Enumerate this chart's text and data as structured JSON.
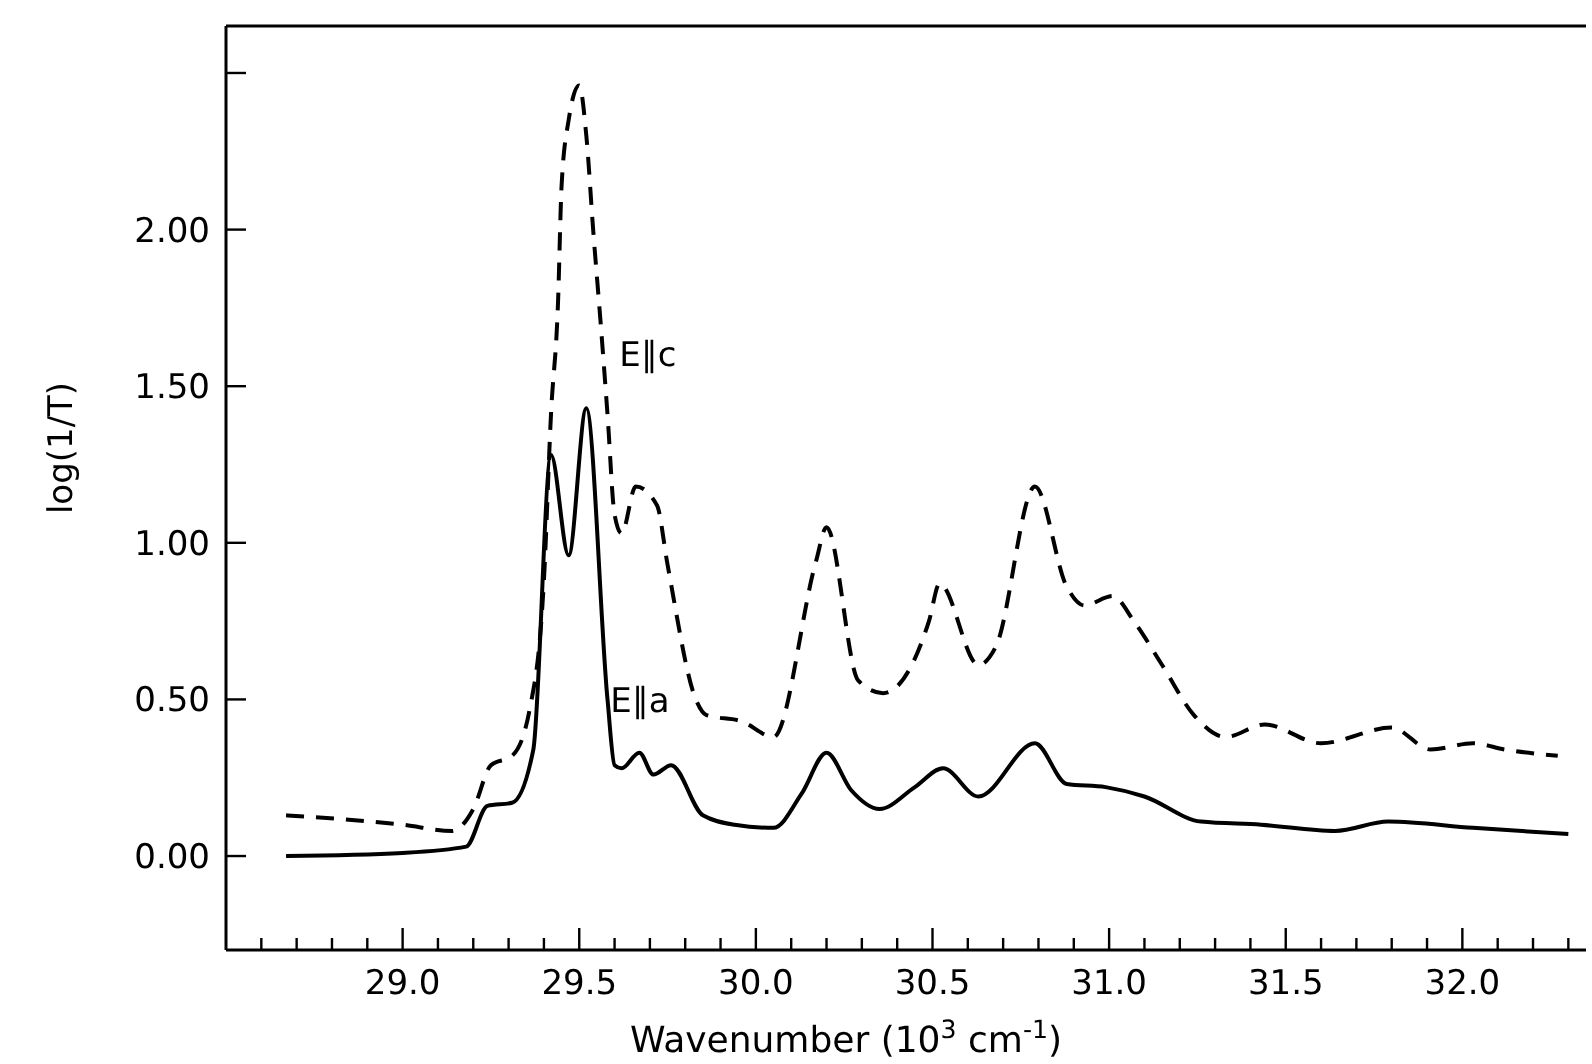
{
  "chart_data": {
    "type": "line",
    "xlabel": "Wavenumber (10$^{3}$ cm$^{-1}$)",
    "ylabel": "log(1/T)",
    "xlim": [
      28.5,
      32.35
    ],
    "ylim": [
      -0.3,
      2.65
    ],
    "xticks": [
      {
        "value": 28.6,
        "label": null
      },
      {
        "value": 28.7,
        "label": null
      },
      {
        "value": 28.8,
        "label": null
      },
      {
        "value": 28.9,
        "label": null
      },
      {
        "value": 29,
        "label": "29.0"
      },
      {
        "value": 29.1,
        "label": null
      },
      {
        "value": 29.2,
        "label": null
      },
      {
        "value": 29.3,
        "label": null
      },
      {
        "value": 29.4,
        "label": null
      },
      {
        "value": 29.5,
        "label": "29.5"
      },
      {
        "value": 29.6,
        "label": null
      },
      {
        "value": 29.7,
        "label": null
      },
      {
        "value": 29.8,
        "label": null
      },
      {
        "value": 29.9,
        "label": null
      },
      {
        "value": 30,
        "label": "30.0"
      },
      {
        "value": 30.1,
        "label": null
      },
      {
        "value": 30.2,
        "label": null
      },
      {
        "value": 30.3,
        "label": null
      },
      {
        "value": 30.4,
        "label": null
      },
      {
        "value": 30.5,
        "label": "30.5"
      },
      {
        "value": 30.6,
        "label": null
      },
      {
        "value": 30.7,
        "label": null
      },
      {
        "value": 30.8,
        "label": null
      },
      {
        "value": 30.9,
        "label": null
      },
      {
        "value": 31,
        "label": "31.0"
      },
      {
        "value": 31.1,
        "label": null
      },
      {
        "value": 31.2,
        "label": null
      },
      {
        "value": 31.3,
        "label": null
      },
      {
        "value": 31.4,
        "label": null
      },
      {
        "value": 31.5,
        "label": "31.5"
      },
      {
        "value": 31.6,
        "label": null
      },
      {
        "value": 31.7,
        "label": null
      },
      {
        "value": 31.8,
        "label": null
      },
      {
        "value": 31.9,
        "label": null
      },
      {
        "value": 32,
        "label": "32.0"
      },
      {
        "value": 32.1,
        "label": null
      },
      {
        "value": 32.2,
        "label": null
      },
      {
        "value": 32.3,
        "label": null
      }
    ],
    "yticks": [
      {
        "value": 0,
        "label": "0.00"
      },
      {
        "value": 0.5,
        "label": "0.50"
      },
      {
        "value": 1,
        "label": "1.00"
      },
      {
        "value": 1.5,
        "label": "1.50"
      },
      {
        "value": 2,
        "label": "2.00"
      },
      {
        "value": 2.5,
        "label": null
      }
    ],
    "grid": false,
    "marker": "none",
    "series": [
      {
        "name": "E∥c",
        "color": "#000000",
        "line_style": "dashed",
        "x": [
          28.67,
          29.0,
          29.14,
          29.2,
          29.25,
          29.31,
          29.36,
          29.4,
          29.42,
          29.44,
          29.45,
          29.47,
          29.5,
          29.52,
          29.54,
          29.56,
          29.58,
          29.6,
          29.62,
          29.66,
          29.72,
          29.75,
          29.83,
          29.86,
          29.96,
          30.05,
          30.17,
          30.2,
          30.29,
          30.36,
          30.49,
          30.52,
          30.63,
          30.68,
          30.79,
          30.88,
          30.93,
          31.01,
          31.07,
          31.15,
          31.24,
          31.33,
          31.44,
          31.6,
          31.8,
          31.91,
          32.03,
          32.12,
          32.27
        ],
        "values": [
          0.13,
          0.1,
          0.08,
          0.15,
          0.29,
          0.32,
          0.47,
          0.88,
          1.41,
          1.77,
          2.14,
          2.35,
          2.46,
          2.3,
          1.99,
          1.71,
          1.41,
          1.09,
          1.03,
          1.18,
          1.12,
          0.93,
          0.5,
          0.45,
          0.43,
          0.38,
          0.94,
          1.05,
          0.56,
          0.52,
          0.75,
          0.87,
          0.61,
          0.67,
          1.18,
          0.86,
          0.8,
          0.83,
          0.75,
          0.61,
          0.45,
          0.38,
          0.42,
          0.36,
          0.41,
          0.34,
          0.36,
          0.34,
          0.32
        ]
      },
      {
        "name": "E∥a",
        "color": "#000000",
        "line_style": "solid",
        "x": [
          28.67,
          29.0,
          29.18,
          29.24,
          29.31,
          29.37,
          29.42,
          29.47,
          29.52,
          29.58,
          29.6,
          29.62,
          29.67,
          29.71,
          29.76,
          29.85,
          29.94,
          30.05,
          30.13,
          30.2,
          30.27,
          30.35,
          30.45,
          30.53,
          30.63,
          30.79,
          30.88,
          30.99,
          31.1,
          31.26,
          31.43,
          31.64,
          31.79,
          32.03,
          32.3
        ],
        "values": [
          0.0,
          0.01,
          0.03,
          0.16,
          0.17,
          0.34,
          1.28,
          0.96,
          1.43,
          0.5,
          0.29,
          0.28,
          0.33,
          0.26,
          0.29,
          0.13,
          0.1,
          0.09,
          0.2,
          0.33,
          0.21,
          0.15,
          0.22,
          0.28,
          0.19,
          0.36,
          0.23,
          0.22,
          0.19,
          0.11,
          0.1,
          0.08,
          0.11,
          0.09,
          0.07
        ]
      }
    ]
  }
}
